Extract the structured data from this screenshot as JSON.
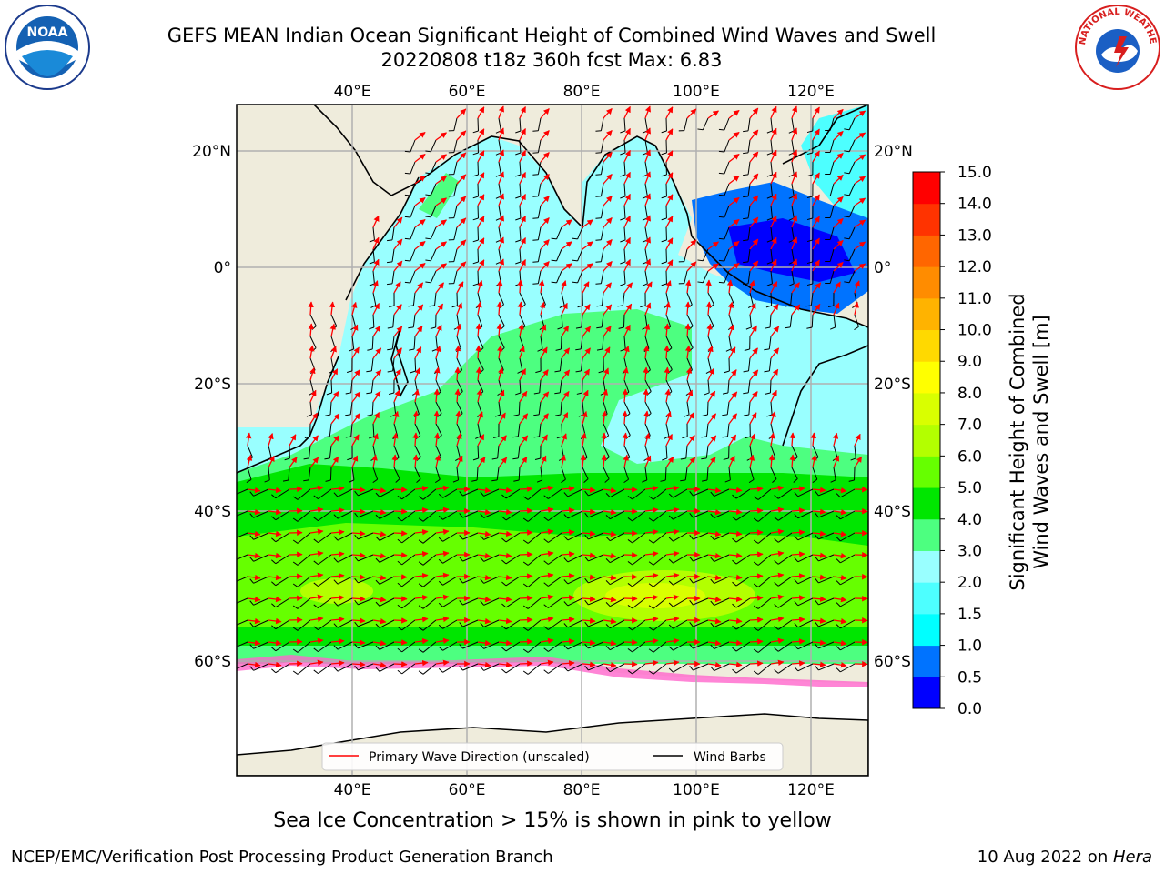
{
  "header": {
    "title_line1": "GEFS MEAN Indian Ocean Significant Height of Combined Wind Waves and Swell",
    "title_line2": "20220808 t18z 360h fcst   Max: 6.83"
  },
  "logos": {
    "noaa_text": "NOAA",
    "nws_text": "NATIONAL WEATHER SERVICE"
  },
  "map": {
    "lon_ticks": [
      "40°E",
      "60°E",
      "80°E",
      "100°E",
      "120°E"
    ],
    "lat_ticks": [
      "20°N",
      "0°",
      "20°S",
      "40°S",
      "60°S"
    ],
    "legend": {
      "primary_wave": "Primary Wave Direction (unscaled)",
      "wind_barbs": "Wind Barbs"
    },
    "colors": {
      "land": "#efecdc",
      "ice": "#ffffff",
      "arrow": "#ff0000",
      "barb": "#000000"
    }
  },
  "colorbar": {
    "label_line1": "Significant Height of Combined",
    "label_line2": "Wind Waves and Swell [m]",
    "ticks": [
      "0.0",
      "0.5",
      "1.0",
      "1.5",
      "2.0",
      "3.0",
      "4.0",
      "5.0",
      "6.0",
      "7.0",
      "8.0",
      "9.0",
      "10.0",
      "11.0",
      "12.0",
      "13.0",
      "14.0",
      "15.0"
    ],
    "colors": [
      "#0000ff",
      "#0073ff",
      "#00ffff",
      "#4dffff",
      "#99ffff",
      "#4dff80",
      "#00e600",
      "#66ff00",
      "#b3ff00",
      "#d9ff00",
      "#ffff00",
      "#ffd900",
      "#ffb300",
      "#ff8c00",
      "#ff6600",
      "#ff3300",
      "#ff0000"
    ]
  },
  "sea_ice_note": "Sea Ice Concentration > 15% is shown in pink to yellow",
  "footer": {
    "left": "NCEP/EMC/Verification Post Processing Product Generation Branch",
    "right_date": "10 Aug 2022 on ",
    "right_host": "Hera"
  }
}
